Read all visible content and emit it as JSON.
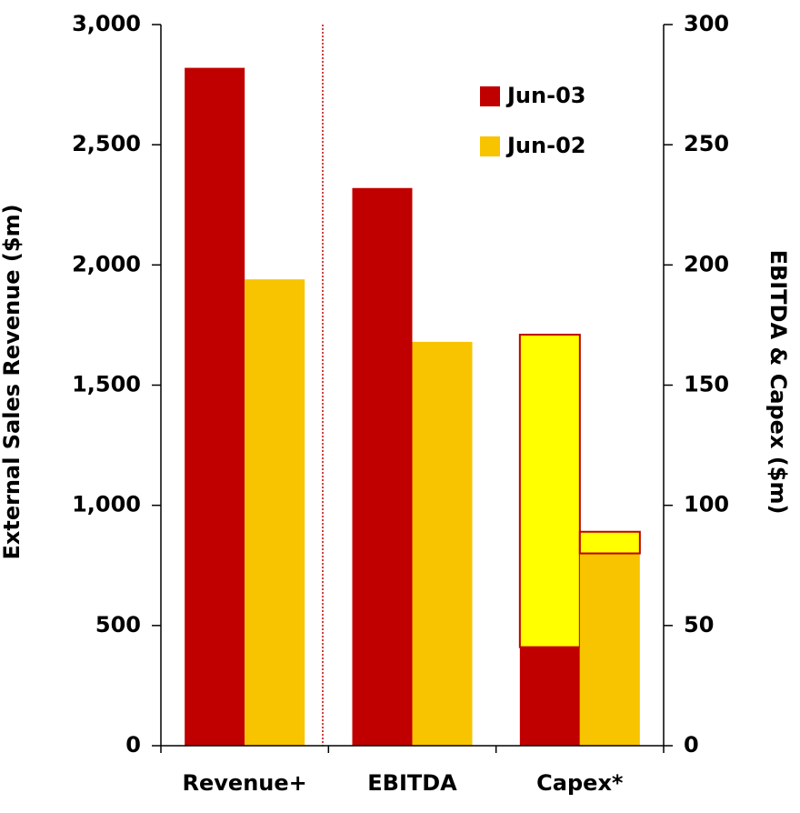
{
  "chart_data": {
    "type": "bar",
    "y_title": "External Sales Revenue ($m)",
    "y2_title": "EBITDA & Capex ($m)",
    "categories": [
      "Revenue+",
      "EBITDA",
      "Capex*"
    ],
    "category_axes": [
      "y",
      "y2",
      "y2"
    ],
    "series": [
      {
        "name": "Jun-03",
        "color": "#c00000",
        "values": [
          2820,
          232,
          41
        ],
        "stacked_values": [
          null,
          null,
          130
        ],
        "stacked_color": "#ffff00"
      },
      {
        "name": "Jun-02",
        "color": "#f8c400",
        "values": [
          1940,
          168,
          80
        ],
        "stacked_values": [
          null,
          null,
          9
        ],
        "stacked_color": "#ffff00"
      }
    ],
    "ylim": [
      0,
      3000
    ],
    "yticks": [
      0,
      500,
      {
        "value": 1000,
        "label": "1,000"
      },
      {
        "value": 1500,
        "label": "1,500"
      },
      {
        "value": 2000,
        "label": "2,000"
      },
      {
        "value": 2500,
        "label": "2,500"
      },
      {
        "value": 3000,
        "label": "3,000"
      }
    ],
    "y2lim": [
      0,
      300
    ],
    "y2ticks": [
      0,
      50,
      100,
      150,
      200,
      250,
      300
    ],
    "legend": "upper-right",
    "stack_border_color": "#c00000"
  }
}
